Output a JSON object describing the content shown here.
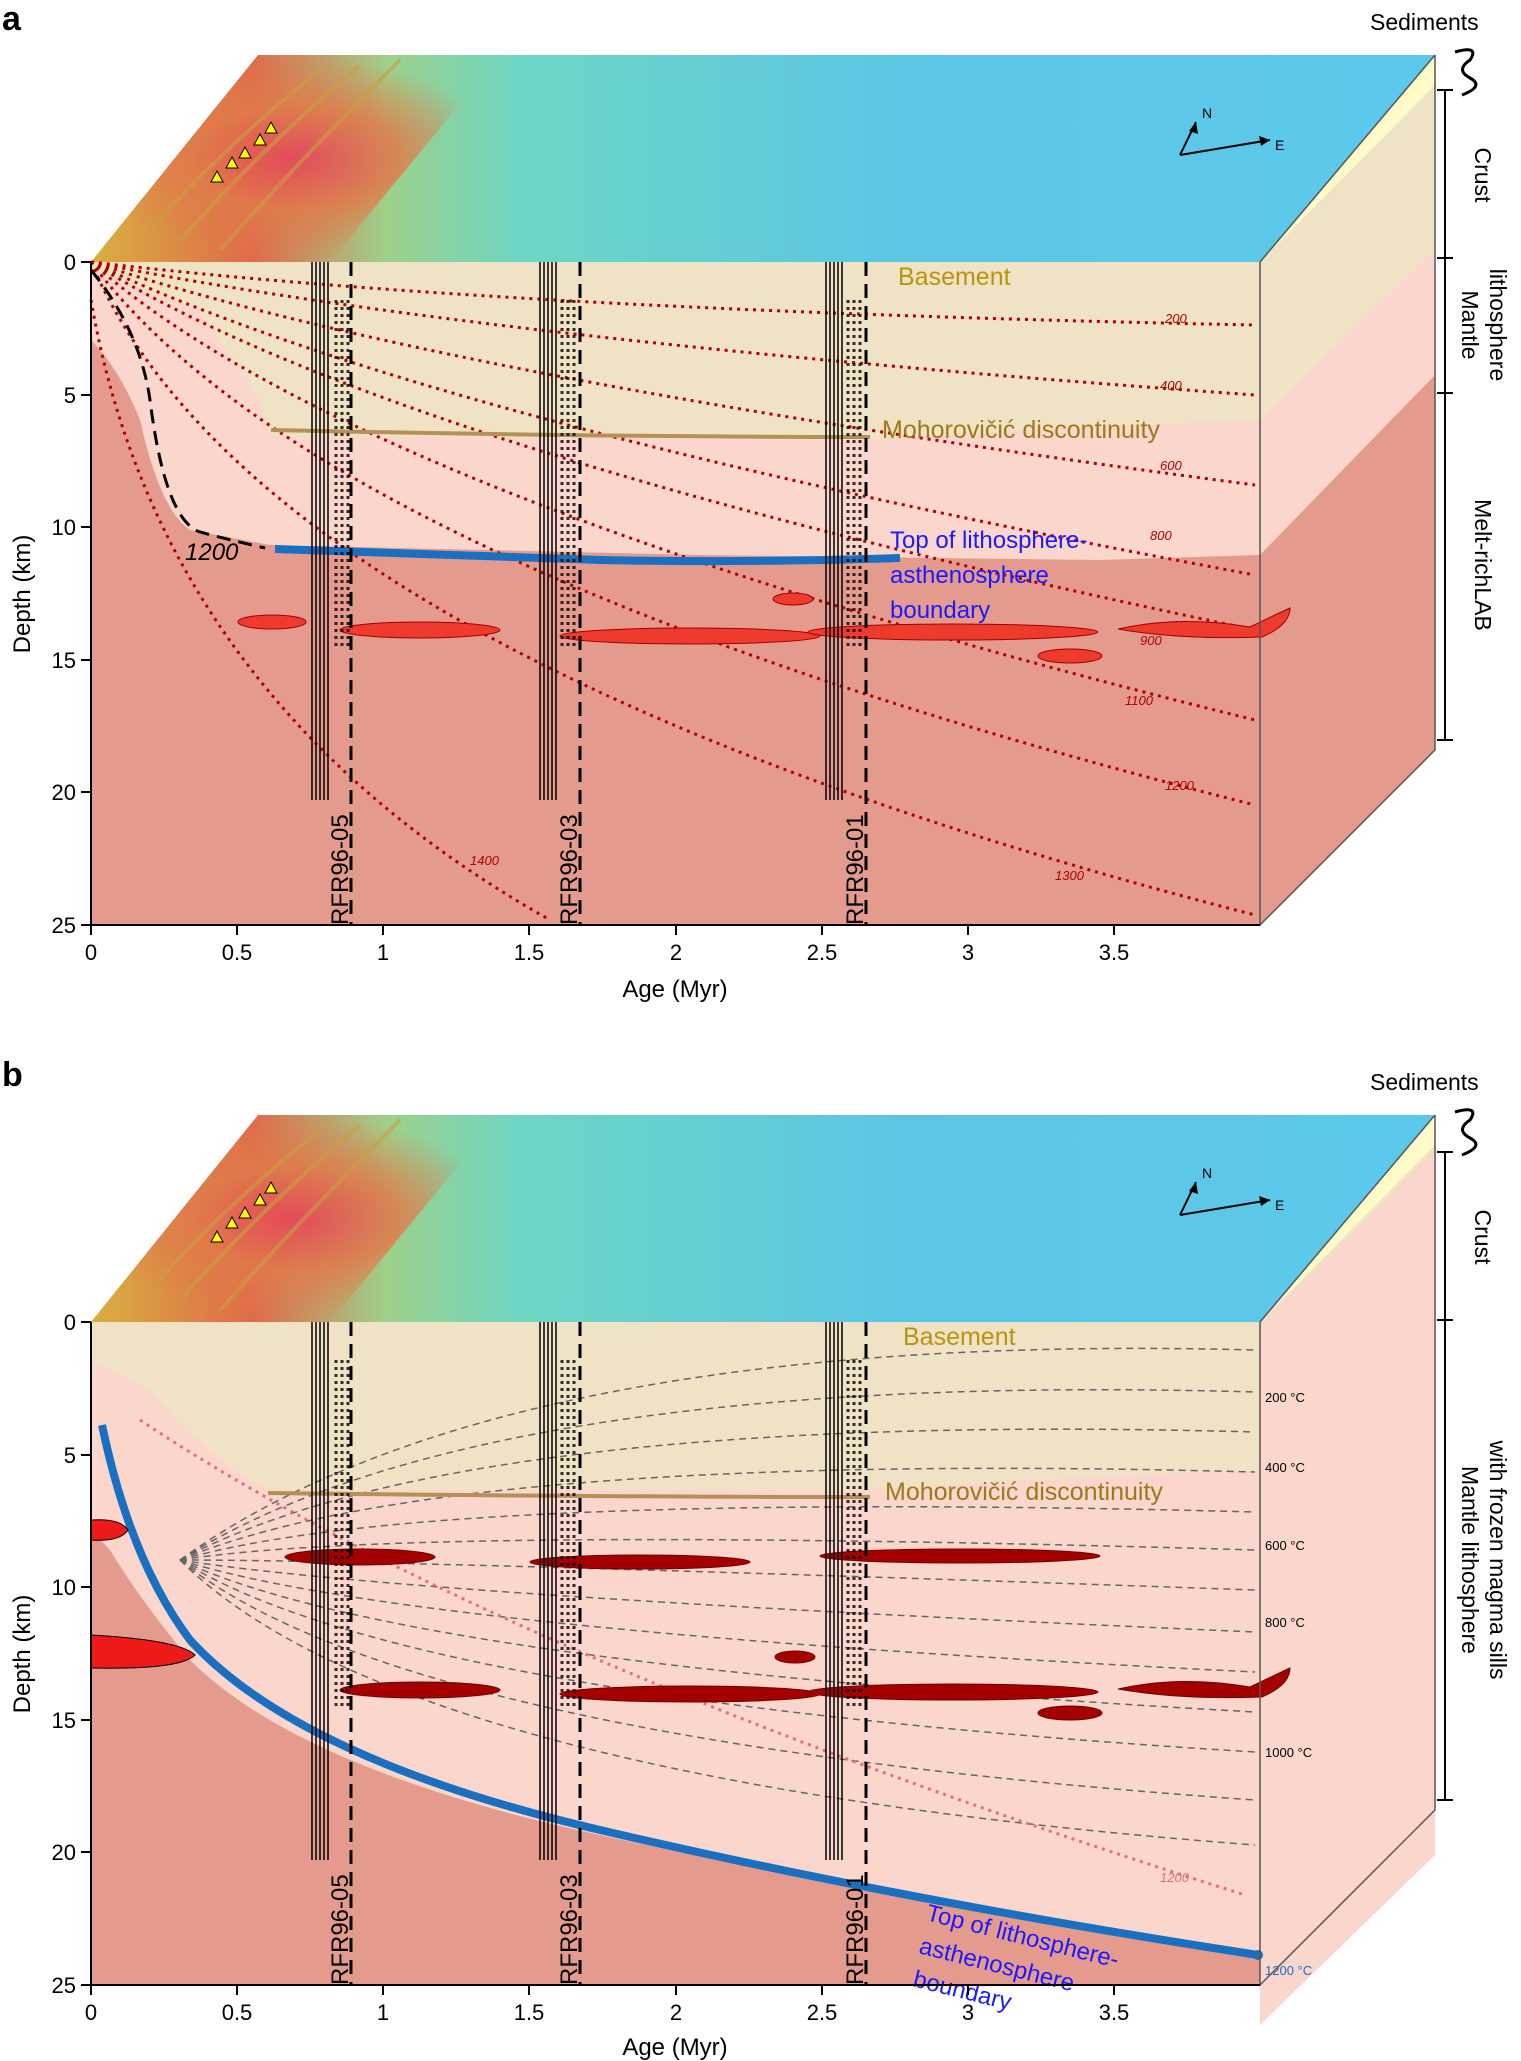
{
  "panel_a": {
    "letter": "a",
    "sediments": "Sediments",
    "layers": {
      "crust": "Crust",
      "mantle_line1": "Mantle",
      "mantle_line2": "lithosphere",
      "melt": "Melt-richLAB"
    },
    "basement": "Basement",
    "moho": "Mohorovičić discontinuity",
    "lab_line1": "Top of lithosphere-",
    "lab_line2": "asthenosphere",
    "lab_line3": "boundary",
    "label_1200": "1200",
    "isotherms": [
      "200",
      "400",
      "600",
      "800",
      "900",
      "1100",
      "1200",
      "1300",
      "1400"
    ],
    "profiles": [
      "RFR96-05",
      "RFR96-03",
      "RFR96-01"
    ],
    "compass": {
      "n": "N",
      "e": "E"
    },
    "xlabel": "Age (Myr)",
    "ylabel": "Depth (km)",
    "xticks": [
      "0",
      "0.5",
      "1",
      "1.5",
      "2",
      "2.5",
      "3",
      "3.5"
    ],
    "yticks": [
      "0",
      "5",
      "10",
      "15",
      "20",
      "25"
    ]
  },
  "panel_b": {
    "letter": "b",
    "sediments": "Sediments",
    "layers": {
      "crust": "Crust",
      "mantle_line1": "Mantle lithosphere",
      "mantle_line2": "with frozen magma sills"
    },
    "basement": "Basement",
    "moho": "Mohorovičić discontinuity",
    "lab_line1": "Top of lithosphere-",
    "lab_line2": "asthenosphere",
    "lab_line3": "boundary",
    "isotherms": [
      "200 °C",
      "400 °C",
      "600 °C",
      "800 °C",
      "1000 °C",
      "1200 °C"
    ],
    "dotted_1200": "1200",
    "profiles": [
      "RFR96-05",
      "RFR96-03",
      "RFR96-01"
    ],
    "compass": {
      "n": "N",
      "e": "E"
    },
    "xlabel": "Age (Myr)",
    "ylabel": "Depth (km)",
    "xticks": [
      "0",
      "0.5",
      "1",
      "1.5",
      "2",
      "2.5",
      "3",
      "3.5"
    ],
    "yticks": [
      "0",
      "5",
      "10",
      "15",
      "20",
      "25"
    ]
  },
  "colors": {
    "crust": "#f0e2c4",
    "mantle": "#fad6cc",
    "asthenosphere": "#e49b8e",
    "lab_line": "#1a6fc0",
    "moho_line": "#b49058",
    "isotherm_red": "#b00000",
    "sill_red": "#ee3b2e",
    "sill_dark": "#a50000"
  }
}
